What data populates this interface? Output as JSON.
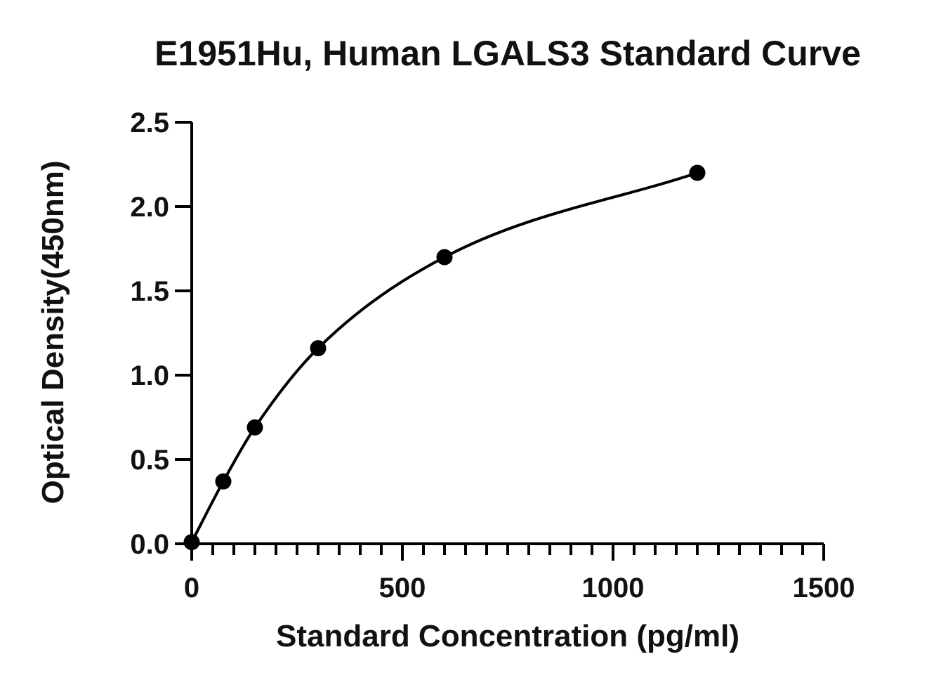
{
  "chart_data": {
    "type": "scatter",
    "title": "E1951Hu, Human LGALS3 Standard Curve",
    "xlabel": "Standard Concentration (pg/ml)",
    "ylabel": "Optical Density(450nm)",
    "xlim": [
      0,
      1500
    ],
    "ylim": [
      0,
      2.5
    ],
    "x_ticks": [
      "0",
      "500",
      "1000",
      "1500"
    ],
    "y_ticks": [
      "0.0",
      "0.5",
      "1.0",
      "1.5",
      "2.0",
      "2.5"
    ],
    "grid": false,
    "legend": "none",
    "fit_line": "smooth curve through points",
    "series": [
      {
        "x": [
          0,
          75,
          150,
          300,
          600,
          1200
        ],
        "y": [
          0.01,
          0.37,
          0.69,
          1.16,
          1.7,
          2.2
        ]
      }
    ],
    "colors": {
      "marker": "#000000",
      "line": "#000000"
    }
  }
}
